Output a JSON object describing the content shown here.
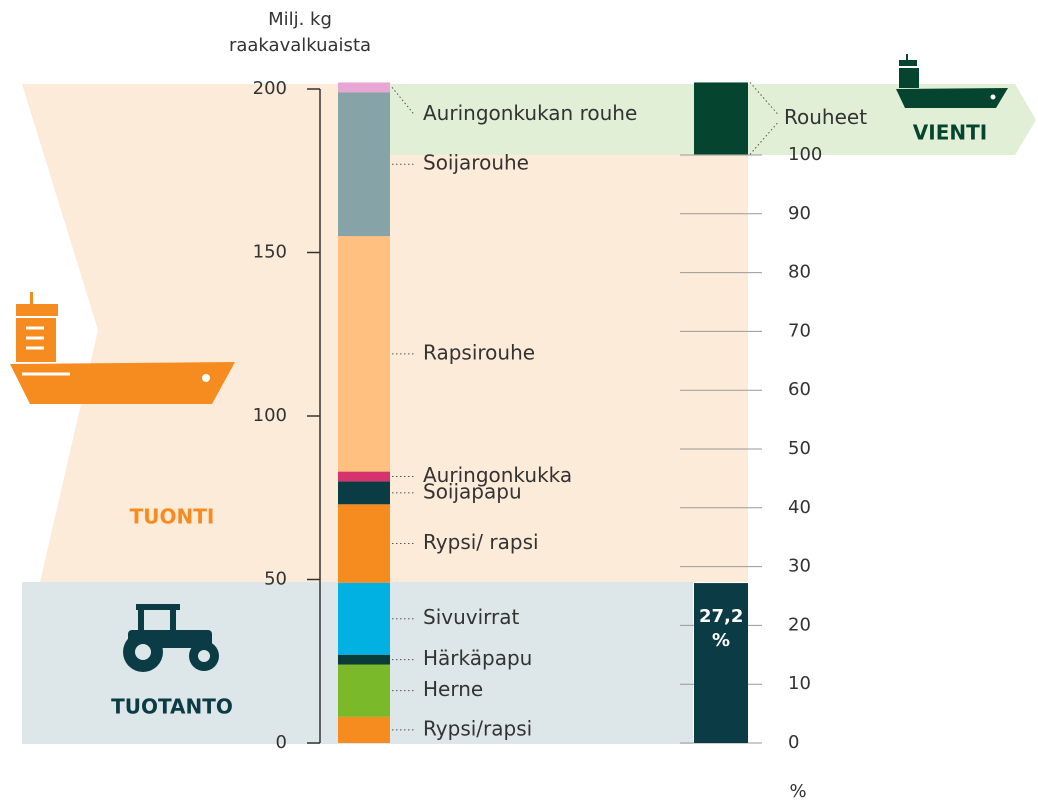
{
  "chart_data": {
    "type": "stacked_bar",
    "y_label_lines": [
      "Milj. kg",
      "raakavalkuaista"
    ],
    "ylim": [
      0,
      200
    ],
    "yticks": [
      0,
      50,
      100,
      150,
      200
    ],
    "series": [
      {
        "name": "Rypsi/rapsi",
        "color": "#f68b1f",
        "values": [
          8
        ]
      },
      {
        "name": "Herne",
        "color": "#7ab929",
        "values": [
          16
        ]
      },
      {
        "name": "Härkäpapu",
        "color": "#0a3d3a",
        "values": [
          3
        ]
      },
      {
        "name": "Sivuvirrat",
        "color": "#00b1e1",
        "values": [
          22
        ]
      },
      {
        "name": "Rypsi/ rapsi",
        "color": "#f68b1f",
        "values": [
          24
        ]
      },
      {
        "name": "Soijapapu",
        "color": "#0b3b45",
        "values": [
          7
        ]
      },
      {
        "name": "Auringonkukka",
        "color": "#d6336c",
        "values": [
          3
        ]
      },
      {
        "name": "Rapsirouhe",
        "color": "#ffc080",
        "values": [
          72
        ]
      },
      {
        "name": "Soijarouhe",
        "color": "#86a3a8",
        "values": [
          44
        ]
      },
      {
        "name": "Auringonkukan rouhe",
        "color": "#e8a6d4",
        "values": [
          3
        ]
      }
    ],
    "export": {
      "name": "Rouheet",
      "range": [
        180,
        202
      ],
      "color": "#05452f"
    },
    "y2lim": [
      0,
      100
    ],
    "y2ticks": [
      0,
      10,
      20,
      30,
      40,
      50,
      60,
      70,
      80,
      90,
      100
    ],
    "y2_label": "%",
    "share": {
      "value": 27.2,
      "label": "27,2 %",
      "color": "#0b3b45",
      "axis": "y2"
    },
    "bands": {
      "production": "TUOTANTO",
      "import": "TUONTI",
      "export": "VIENTI"
    }
  }
}
